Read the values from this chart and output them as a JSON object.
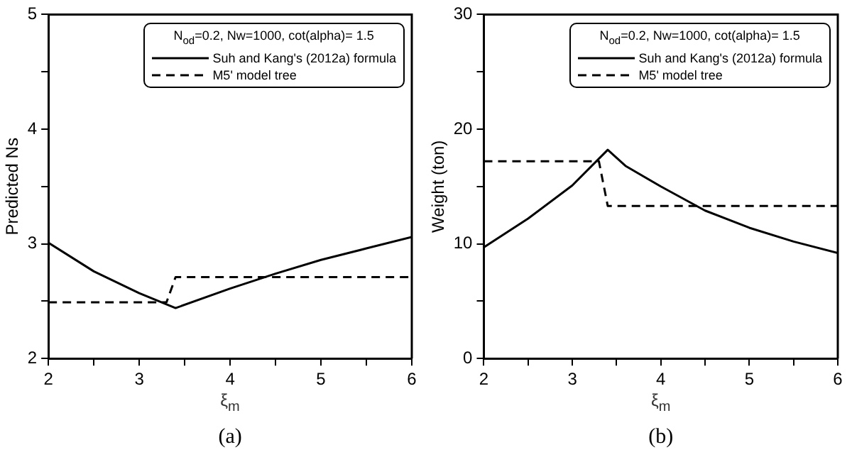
{
  "chart_data": [
    {
      "type": "line",
      "xlabel": "ξ$_{m}$",
      "ylabel": "Predicted Ns",
      "legend_title": "N$_{od}$=0.2, Nw=1000, cot(alpha)= 1.5",
      "legend": "top right",
      "grid": false,
      "marker": "none",
      "annotations": [
        "(a)"
      ],
      "xlim": [
        2,
        6
      ],
      "xticks": [
        2,
        {
          "value": 2.5,
          "label": null
        },
        3,
        {
          "value": 3.5,
          "label": null
        },
        4,
        {
          "value": 4.5,
          "label": null
        },
        5,
        {
          "value": 5.5,
          "label": null
        },
        6
      ],
      "ylim": [
        2,
        5
      ],
      "yticks": [
        2,
        {
          "value": 2.5,
          "label": null
        },
        3,
        {
          "value": 3.5,
          "label": null
        },
        4,
        {
          "value": 4.5,
          "label": null
        },
        5
      ],
      "series": [
        {
          "name": "Suh and Kang's (2012a) formula",
          "color": "#000000",
          "line_style": "solid",
          "x": [
            2,
            2.5,
            3,
            3.4,
            4,
            4.5,
            5,
            5.5,
            6
          ],
          "values": [
            3.01,
            2.76,
            2.57,
            2.44,
            2.61,
            2.74,
            2.86,
            2.96,
            3.06
          ]
        },
        {
          "name": "M5' model tree",
          "color": "#000000",
          "line_style": "dashed",
          "x": [
            2,
            3.3,
            3.4,
            6
          ],
          "values": [
            2.49,
            2.49,
            2.71,
            2.71
          ]
        }
      ]
    },
    {
      "type": "line",
      "xlabel": "ξ$_{m}$",
      "ylabel": "Weight (ton)",
      "legend_title": "N$_{od}$=0.2, Nw=1000, cot(alpha)= 1.5",
      "legend": "top right",
      "grid": false,
      "marker": "none",
      "annotations": [
        "(b)"
      ],
      "xlim": [
        2,
        6
      ],
      "xticks": [
        2,
        {
          "value": 2.5,
          "label": null
        },
        3,
        {
          "value": 3.5,
          "label": null
        },
        4,
        {
          "value": 4.5,
          "label": null
        },
        5,
        {
          "value": 5.5,
          "label": null
        },
        6
      ],
      "ylim": [
        0,
        30
      ],
      "yticks": [
        0,
        {
          "value": 5,
          "label": null
        },
        10,
        {
          "value": 15,
          "label": null
        },
        20,
        {
          "value": 25,
          "label": null
        },
        30
      ],
      "series": [
        {
          "name": "Suh and Kang's (2012a) formula",
          "color": "#000000",
          "line_style": "solid",
          "x": [
            2,
            2.5,
            3,
            3.4,
            3.6,
            4,
            4.5,
            5,
            5.5,
            6
          ],
          "values": [
            9.7,
            12.2,
            15.1,
            18.2,
            16.8,
            15.0,
            12.9,
            11.4,
            10.2,
            9.2
          ]
        },
        {
          "name": "M5' model tree",
          "color": "#000000",
          "line_style": "dashed",
          "x": [
            2,
            3.3,
            3.4,
            6
          ],
          "values": [
            17.2,
            17.2,
            13.3,
            13.3
          ]
        }
      ]
    }
  ]
}
